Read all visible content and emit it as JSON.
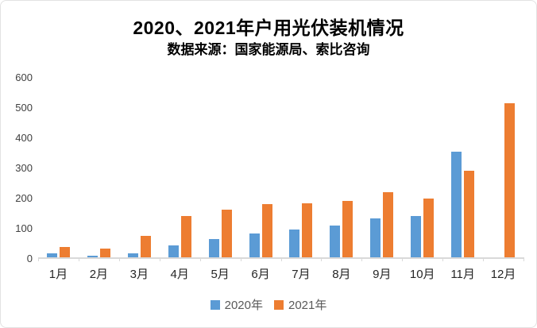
{
  "chart_data": {
    "type": "bar",
    "title": "2020、2021年户用光伏装机情况",
    "subtitle": "数据来源：国家能源局、索比咨询",
    "categories": [
      "1月",
      "2月",
      "3月",
      "4月",
      "5月",
      "6月",
      "7月",
      "8月",
      "9月",
      "10月",
      "11月",
      "12月"
    ],
    "series": [
      {
        "name": "2020年",
        "color": "#5B9BD5",
        "values": [
          14,
          5,
          14,
          40,
          61,
          78,
          92,
          104,
          130,
          137,
          350,
          0
        ]
      },
      {
        "name": "2021年",
        "color": "#ED7D31",
        "values": [
          33,
          28,
          70,
          136,
          158,
          176,
          178,
          187,
          215,
          195,
          286,
          510
        ]
      }
    ],
    "xlabel": "",
    "ylabel": "",
    "ylim": [
      0,
      600
    ],
    "yticks": [
      0,
      100,
      200,
      300,
      400,
      500,
      600
    ],
    "grid": false,
    "legend_position": "bottom",
    "axis_color": "#d9d9d9",
    "tick_label_color": "#404040",
    "legend_text_color": "#595959"
  }
}
